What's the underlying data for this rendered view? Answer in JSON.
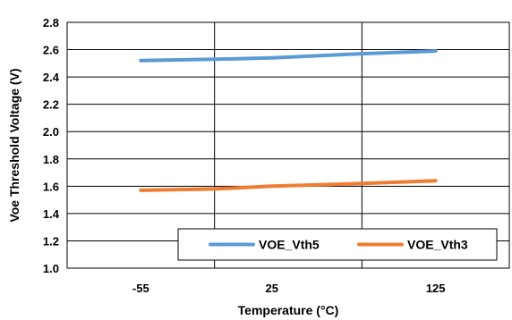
{
  "chart_data": {
    "type": "line",
    "title": "",
    "xlabel": "Temperature (°C)",
    "ylabel": "Voe Threshold Voltage (V)",
    "categories": [
      "-55",
      "25",
      "125"
    ],
    "category_positions": [
      -55,
      25,
      125
    ],
    "xlim": [
      -100,
      170
    ],
    "x_gridlines": [
      -10,
      80
    ],
    "ylim": [
      1.0,
      2.8
    ],
    "yticks": [
      "1.0",
      "1.2",
      "1.4",
      "1.6",
      "1.8",
      "2.0",
      "2.2",
      "2.4",
      "2.6",
      "2.8"
    ],
    "grid": "horizontal and vertical",
    "legend_position": "bottom-right",
    "series": [
      {
        "name": "VOE_Vth5",
        "color": "#5b9bd5",
        "x": [
          -55,
          -10,
          25,
          80,
          125
        ],
        "values": [
          2.52,
          2.53,
          2.54,
          2.57,
          2.59
        ]
      },
      {
        "name": "VOE_Vth3",
        "color": "#ed7d31",
        "x": [
          -55,
          -10,
          25,
          80,
          125
        ],
        "values": [
          1.57,
          1.58,
          1.6,
          1.62,
          1.64
        ]
      }
    ]
  }
}
